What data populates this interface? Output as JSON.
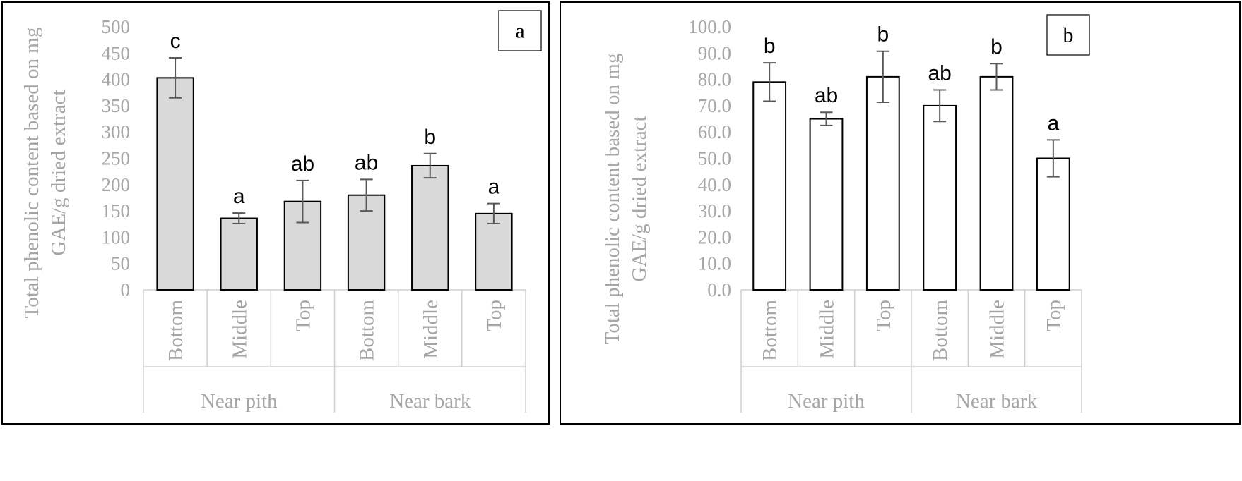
{
  "chart_data": [
    {
      "panel": "a",
      "type": "bar",
      "ylabel": [
        "Total phenolic content based on mg",
        "GAE/g dried extract"
      ],
      "ylim": [
        0,
        500
      ],
      "yticks": [
        "0",
        "50",
        "100",
        "150",
        "200",
        "250",
        "300",
        "350",
        "400",
        "450",
        "500"
      ],
      "grid": false,
      "bar_fill": "#d9d9d9",
      "categories": [
        "Bottom",
        "Middle",
        "Top",
        "Bottom",
        "Middle",
        "Top"
      ],
      "groups": [
        {
          "label": "Near pith",
          "categories": [
            0,
            1,
            2
          ]
        },
        {
          "label": "Near bark",
          "categories": [
            3,
            4,
            5
          ]
        }
      ],
      "values": [
        403,
        136,
        168,
        180,
        236,
        145
      ],
      "errors": [
        38,
        10,
        40,
        30,
        23,
        19
      ],
      "labels": [
        "c",
        "a",
        "ab",
        "ab",
        "b",
        "a"
      ]
    },
    {
      "panel": "b",
      "type": "bar",
      "ylabel": [
        "Total phenolic content based on mg",
        "GAE/g dried extract"
      ],
      "ylim": [
        0,
        100
      ],
      "yticks": [
        "0.0",
        "10.0",
        "20.0",
        "30.0",
        "40.0",
        "50.0",
        "60.0",
        "70.0",
        "80.0",
        "90.0",
        "100.0"
      ],
      "grid": false,
      "bar_fill": "#ffffff",
      "categories": [
        "Bottom",
        "Middle",
        "Top",
        "Bottom",
        "Middle",
        "Top"
      ],
      "groups": [
        {
          "label": "Near pith",
          "categories": [
            0,
            1,
            2
          ]
        },
        {
          "label": "Near bark",
          "categories": [
            3,
            4,
            5
          ]
        }
      ],
      "values": [
        79,
        65,
        81,
        70,
        81,
        50
      ],
      "errors": [
        7.3,
        2.5,
        9.7,
        6,
        5,
        7
      ],
      "labels": [
        "b",
        "ab",
        "b",
        "ab",
        "b",
        "a"
      ]
    }
  ]
}
